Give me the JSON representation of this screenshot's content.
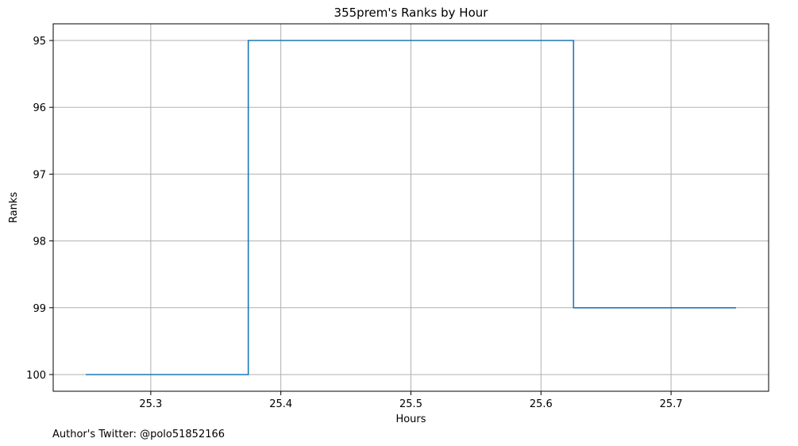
{
  "chart_data": {
    "type": "line",
    "title": "355prem's Ranks by Hour",
    "xlabel": "Hours",
    "ylabel": "Ranks",
    "footer": "Author's Twitter: @polo51852166",
    "xlim": [
      25.225,
      25.775
    ],
    "ylim": [
      100.25,
      94.75
    ],
    "y_inverted": true,
    "grid": true,
    "step_where": "mid",
    "x_ticks": [
      25.3,
      25.4,
      25.5,
      25.6,
      25.7
    ],
    "x_tick_labels": [
      "25.3",
      "25.4",
      "25.5",
      "25.6",
      "25.7"
    ],
    "y_ticks": [
      95,
      96,
      97,
      98,
      99,
      100
    ],
    "y_tick_labels": [
      "95",
      "96",
      "97",
      "98",
      "99",
      "100"
    ],
    "series": [
      {
        "color": "#1f77b4",
        "x": [
          25.25,
          25.5,
          25.75
        ],
        "y": [
          100,
          95,
          99
        ]
      }
    ]
  }
}
